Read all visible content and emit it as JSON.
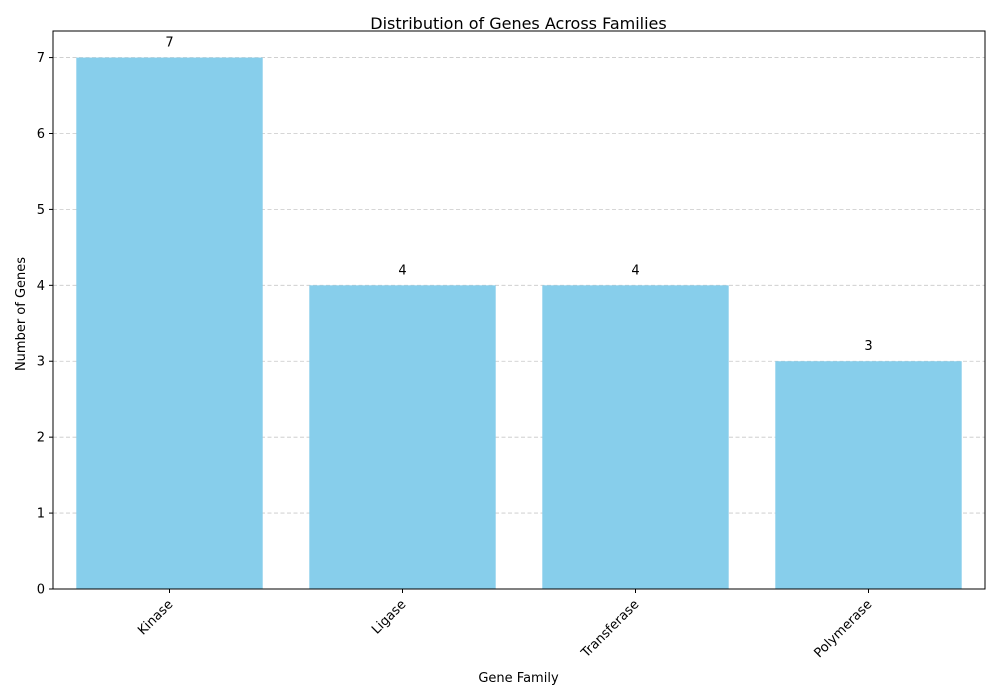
{
  "chart_data": {
    "type": "bar",
    "title": "Distribution of Genes Across Families",
    "xlabel": "Gene Family",
    "ylabel": "Number of Genes",
    "categories": [
      "Kinase",
      "Ligase",
      "Transferase",
      "Polymerase"
    ],
    "values": [
      7,
      4,
      4,
      3
    ],
    "ylim": [
      0,
      7.35
    ],
    "yticks": [
      "0",
      "1",
      "2",
      "3",
      "4",
      "5",
      "6",
      "7"
    ],
    "bar_color": "#87CEEB",
    "grid": "horizontal dashed",
    "data_labels": [
      "7",
      "4",
      "4",
      "3"
    ]
  }
}
